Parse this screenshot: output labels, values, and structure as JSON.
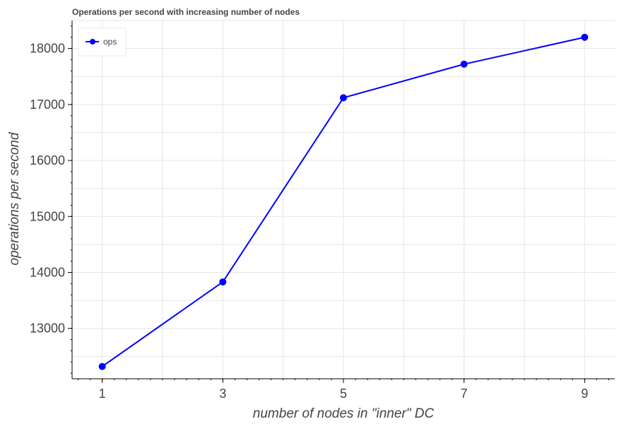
{
  "chart_data": {
    "type": "line",
    "title": "Operations per second with increasing number of nodes",
    "xlabel": "number of nodes in \"inner\" DC",
    "ylabel": "operations per second",
    "x_ticks": [
      1,
      3,
      5,
      7,
      9
    ],
    "y_ticks": [
      13000,
      14000,
      15000,
      16000,
      17000,
      18000
    ],
    "xlim": [
      0.5,
      9.5
    ],
    "ylim": [
      12100,
      18500
    ],
    "grid": true,
    "legend_position": "top-left",
    "series": [
      {
        "name": "ops",
        "color": "#0000ff",
        "marker": "circle",
        "x": [
          1,
          3,
          5,
          7,
          9
        ],
        "y": [
          12320,
          13830,
          17120,
          17720,
          18200
        ]
      }
    ]
  }
}
